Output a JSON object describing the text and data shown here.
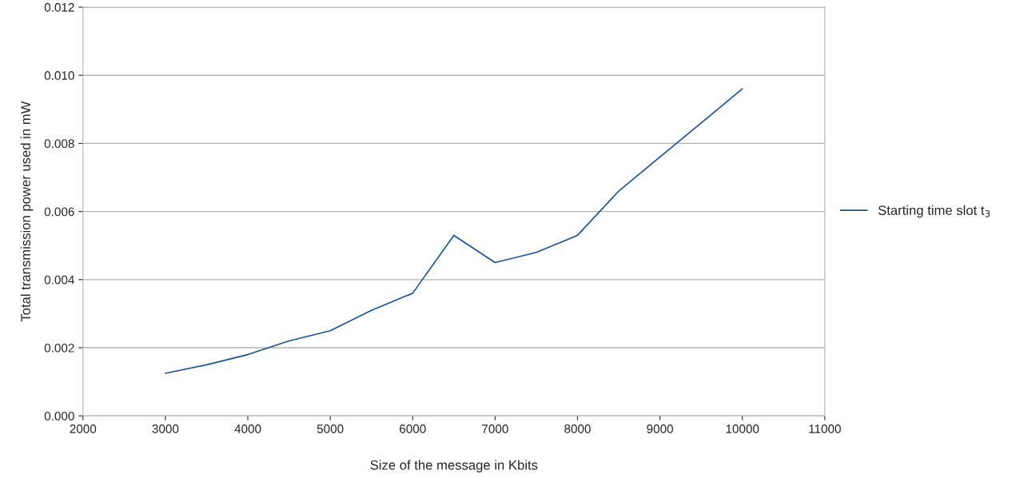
{
  "chart_data": {
    "type": "line",
    "xlabel": "Size of the message in Kbits",
    "ylabel": "Total transmission power used in mW",
    "x": [
      3000,
      3500,
      4000,
      4500,
      5000,
      5500,
      6000,
      6500,
      7000,
      7500,
      8000,
      8500,
      9000,
      9500,
      10000
    ],
    "series": [
      {
        "name": "Starting time slot t$_{3}$",
        "color": "#1c5290",
        "values": [
          0.00125,
          0.0015,
          0.0018,
          0.0022,
          0.0025,
          0.0031,
          0.0036,
          0.0053,
          0.0045,
          0.0048,
          0.0053,
          0.0066,
          0.0076,
          0.0086,
          0.0096
        ]
      }
    ],
    "xlim": [
      2000,
      11000
    ],
    "xticks": [
      2000,
      3000,
      4000,
      5000,
      6000,
      7000,
      8000,
      9000,
      10000,
      11000
    ],
    "ylim": [
      0,
      0.012
    ],
    "yticks": [
      {
        "value": 0,
        "label": "0.000"
      },
      {
        "value": 0.002,
        "label": "0.002"
      },
      {
        "value": 0.004,
        "label": "0.004"
      },
      {
        "value": 0.006,
        "label": "0.006"
      },
      {
        "value": 0.008,
        "label": "0.008"
      },
      {
        "value": 0.01,
        "label": "0.010"
      },
      {
        "value": 0.012,
        "label": "0.012"
      }
    ],
    "grid": "y",
    "legend": "right",
    "marker": "none",
    "line_style": "solid"
  }
}
